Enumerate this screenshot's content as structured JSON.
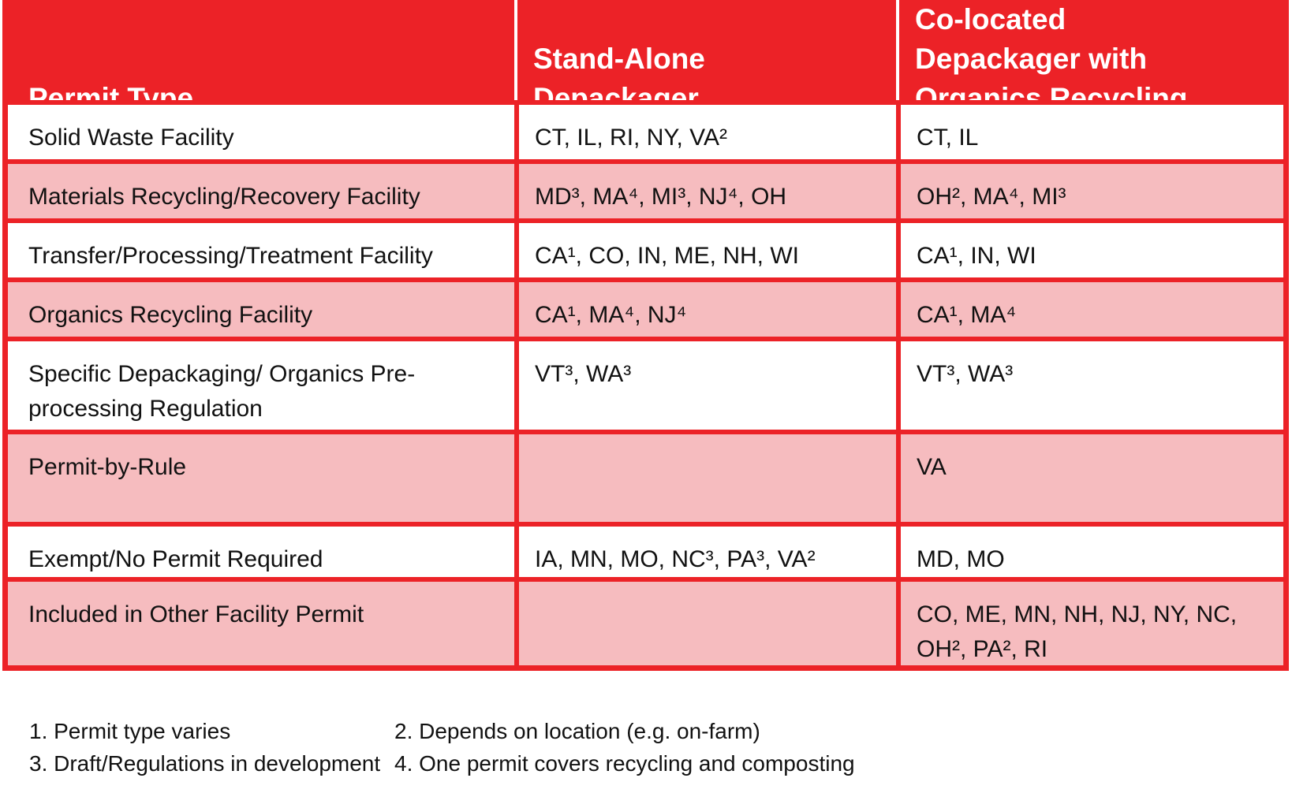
{
  "colors": {
    "table_red": "#EC2227",
    "row_pink": "#F6BCBF",
    "row_white": "#FFFFFF",
    "header_text": "#FFFFFF",
    "body_text": "#111111"
  },
  "header_display": {
    "col1_label": "Permit Type",
    "col2_lines": [
      "Stand-Alone",
      "Depackager"
    ],
    "col3_lines": [
      "Co-located",
      "Depackager with",
      "Organics Recycling"
    ]
  },
  "chart_data": {
    "type": "table",
    "columns": [
      "Permit Type",
      "Stand-Alone Depackager",
      "Co-located Depackager with Organics Recycling"
    ],
    "rows": [
      [
        "Solid Waste Facility",
        "CT, IL, RI, NY, VA²",
        "CT, IL"
      ],
      [
        "Materials Recycling/Recovery Facility",
        "MD³, MA⁴, MI³, NJ⁴, OH",
        "OH², MA⁴, MI³"
      ],
      [
        "Transfer/Processing/Treatment Facility",
        "CA¹, CO, IN, ME, NH, WI",
        "CA¹, IN, WI"
      ],
      [
        "Organics Recycling Facility",
        "CA¹, MA⁴, NJ⁴",
        "CA¹, MA⁴"
      ],
      [
        "Specific Depackaging/ Organics Pre-\nprocessing Regulation",
        "VT³, WA³",
        "VT³, WA³"
      ],
      [
        "Permit-by-Rule",
        "",
        "VA"
      ],
      [
        "Exempt/No Permit Required",
        "IA, MN, MO, NC³, PA³, VA²",
        "MD, MO"
      ],
      [
        "Included in Other Facility Permit",
        "",
        "CO, ME, MN, NH, NJ, NY, NC,\nOH², PA², RI"
      ]
    ],
    "footnotes": [
      "1. Permit type varies",
      "2. Depends on location (e.g. on-farm)",
      "3. Draft/Regulations in development",
      "4. One permit covers recycling and composting"
    ],
    "layout_hints": {
      "header_background": "red",
      "row_striping": [
        "white",
        "pink",
        "white",
        "pink",
        "white",
        "pink",
        "white",
        "pink"
      ],
      "grid": "on"
    }
  }
}
